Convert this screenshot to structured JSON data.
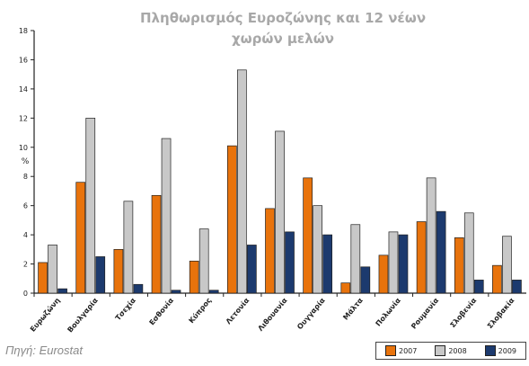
{
  "chart_data": {
    "type": "bar",
    "title": "Πληθωρισμός Ευροζώνης και 12 νέων χωρών μελών",
    "xlabel": "",
    "ylabel": "%",
    "ylim": [
      0,
      18
    ],
    "yticks": [
      0,
      2,
      4,
      6,
      8,
      10,
      12,
      14,
      16,
      18
    ],
    "categories": [
      "Ευρωζώνη",
      "Βουλγαρία",
      "Τσεχία",
      "Εσθονία",
      "Κύπρος",
      "Λετονία",
      "Λιθουανία",
      "Ουγγαρία",
      "Μάλτα",
      "Πολωνία",
      "Ρουμανία",
      "Σλοβενία",
      "Σλοβακία"
    ],
    "series": [
      {
        "name": "2007",
        "color": "#e8730c",
        "values": [
          2.1,
          7.6,
          3.0,
          6.7,
          2.2,
          10.1,
          5.8,
          7.9,
          0.7,
          2.6,
          4.9,
          3.8,
          1.9
        ]
      },
      {
        "name": "2008",
        "color": "#c8c8c8",
        "values": [
          3.3,
          12.0,
          6.3,
          10.6,
          4.4,
          15.3,
          11.1,
          6.0,
          4.7,
          4.2,
          7.9,
          5.5,
          3.9
        ]
      },
      {
        "name": "2009",
        "color": "#1c3a6e",
        "values": [
          0.3,
          2.5,
          0.6,
          0.2,
          0.2,
          3.3,
          4.2,
          4.0,
          1.8,
          4.0,
          5.6,
          0.9,
          0.9
        ]
      }
    ],
    "grid": false,
    "legend_position": "bottom-right"
  },
  "source": "Πηγή: Eurostat"
}
